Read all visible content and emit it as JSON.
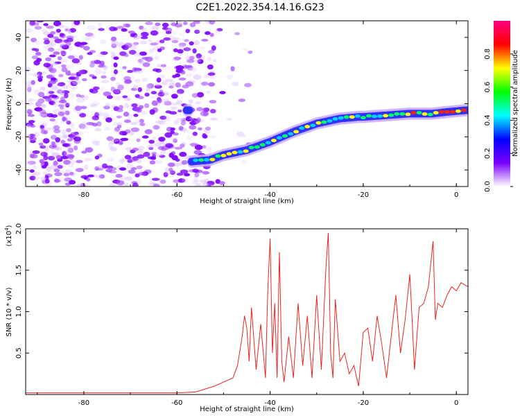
{
  "title": "C2E1.2022.354.14.16.G23",
  "colorbar": {
    "label": "Normalized spectral amplitude",
    "ticks": [
      "0.0",
      "0.2",
      "0.4",
      "0.6",
      "0.8"
    ],
    "colors": [
      "#ffffff",
      "#7a00ff",
      "#0000ff",
      "#00ffff",
      "#00ff00",
      "#ffff00",
      "#ff0000",
      "#ff0080"
    ]
  },
  "chart_data": [
    {
      "type": "heatmap",
      "xlabel": "Height of straight line (km)",
      "ylabel": "Frequency (Hz)",
      "xlim": [
        -92.5,
        2.5
      ],
      "ylim": [
        -50,
        50
      ],
      "xticks": [
        "-80",
        "-60",
        "-40",
        "-20",
        "0"
      ],
      "yticks": [
        "40",
        "20",
        "0",
        "-20",
        "-40"
      ],
      "trend": {
        "x": [
          -57,
          -53,
          -50,
          -45,
          -40,
          -35,
          -30,
          -25,
          -21,
          -20,
          -15,
          -10,
          -5,
          -2,
          2
        ],
        "y": [
          -35,
          -34,
          -31,
          -28,
          -23,
          -17,
          -12,
          -9,
          -8,
          -8,
          -7,
          -6,
          -6,
          -5,
          -4
        ]
      }
    },
    {
      "type": "line",
      "xlabel": "Height of straight line (km)",
      "ylabel": "SNR (10 * v/v)",
      "y_multiplier": "(x10",
      "y_multiplier_exp": "4",
      "y_multiplier_close": ")",
      "xlim": [
        -92.5,
        2.5
      ],
      "ylim": [
        0,
        2.0
      ],
      "xticks": [
        "-80",
        "-60",
        "-40",
        "-20",
        "0"
      ],
      "yticks": [
        "2.0",
        "1.5",
        "1.0",
        "0.5"
      ],
      "series": [
        {
          "color": "#e8231f",
          "x": [
            -92.5,
            -80,
            -70,
            -60,
            -56,
            -52,
            -50,
            -48,
            -47,
            -46,
            -45.5,
            -45,
            -44.5,
            -44,
            -43,
            -42,
            -41,
            -40.5,
            -40,
            -39.5,
            -39,
            -38.5,
            -38,
            -37.5,
            -37,
            -36,
            -35,
            -34,
            -33,
            -32,
            -31,
            -30,
            -29,
            -28,
            -27.5,
            -27,
            -26.5,
            -26,
            -25,
            -24,
            -23,
            -22,
            -21,
            -20,
            -19,
            -18,
            -17,
            -16,
            -15,
            -14,
            -13,
            -12,
            -11,
            -10,
            -9.5,
            -9,
            -8,
            -7,
            -6,
            -5,
            -4.5,
            -4,
            -3,
            -2,
            -1,
            0,
            1,
            2.5
          ],
          "y": [
            0.02,
            0.02,
            0.02,
            0.02,
            0.03,
            0.1,
            0.15,
            0.2,
            0.35,
            0.7,
            0.95,
            0.8,
            0.4,
            1.05,
            0.3,
            0.85,
            0.2,
            1.25,
            1.88,
            0.5,
            1.1,
            0.2,
            1.72,
            0.4,
            0.15,
            0.7,
            0.2,
            1.1,
            0.35,
            0.95,
            0.2,
            1.2,
            0.3,
            1.55,
            1.95,
            0.5,
            0.2,
            1.15,
            0.4,
            0.5,
            0.25,
            0.35,
            0.1,
            0.75,
            0.8,
            0.4,
            0.95,
            0.6,
            0.2,
            0.7,
            1.2,
            0.5,
            0.9,
            1.45,
            0.9,
            0.3,
            1.05,
            1.1,
            1.3,
            1.85,
            0.9,
            1.1,
            1.05,
            1.2,
            1.3,
            1.25,
            1.35,
            1.3
          ]
        }
      ]
    }
  ]
}
